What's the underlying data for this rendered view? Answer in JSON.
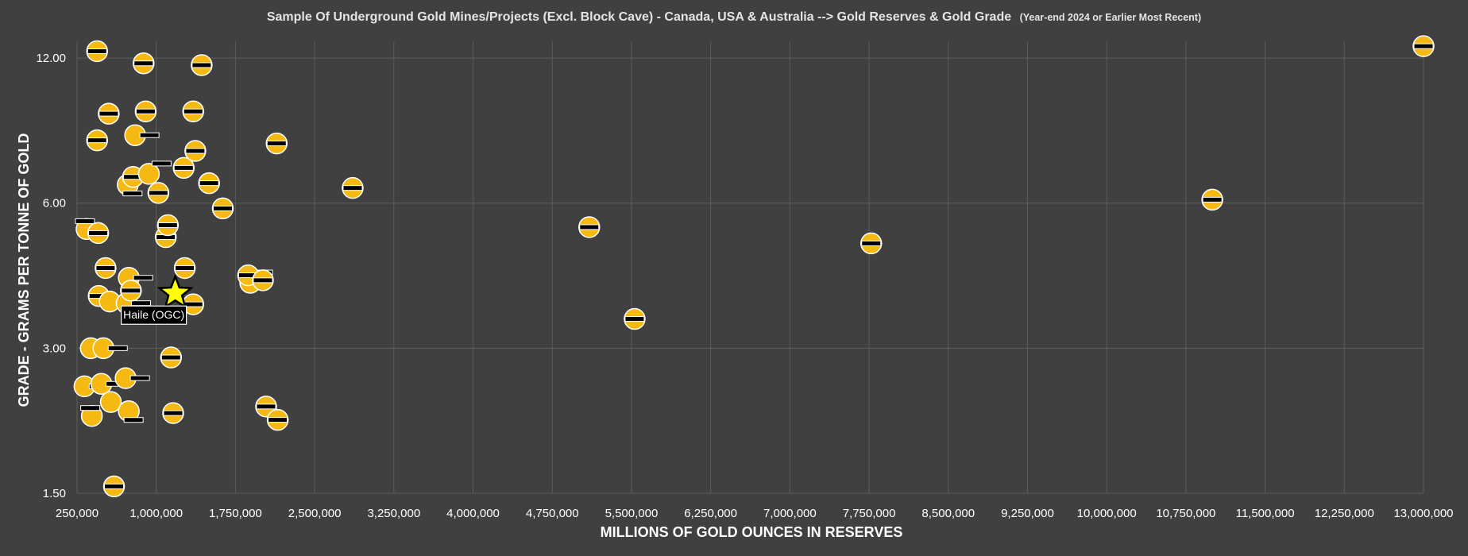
{
  "chart_data": {
    "type": "scatter",
    "title": "Sample Of Underground Gold Mines/Projects (Excl. Block Cave) - Canada, USA & Australia --> Gold Reserves & Gold Grade",
    "subtitle": "(Year-end 2024 or Earlier Most Recent)",
    "xlabel": "MILLIONS OF GOLD OUNCES IN RESERVES",
    "ylabel": "GRADE - GRAMS PER TONNE OF GOLD",
    "xlim": [
      250000,
      13000000
    ],
    "ylim": [
      1.5,
      13
    ],
    "y_scale": "log",
    "x_ticks": [
      "250,000",
      "1,000,000",
      "1,750,000",
      "2,500,000",
      "3,250,000",
      "4,000,000",
      "4,750,000",
      "5,500,000",
      "6,250,000",
      "7,000,000",
      "7,750,000",
      "8,500,000",
      "9,250,000",
      "10,000,000",
      "10,750,000",
      "11,500,000",
      "12,250,000",
      "13,000,000"
    ],
    "x_tick_values": [
      250000,
      1000000,
      1750000,
      2500000,
      3250000,
      4000000,
      4750000,
      5500000,
      6250000,
      7000000,
      7750000,
      8500000,
      9250000,
      10000000,
      10750000,
      11500000,
      12250000,
      13000000
    ],
    "y_ticks": [
      "1.50",
      "3.00",
      "6.00",
      "12.00"
    ],
    "y_tick_values": [
      1.5,
      3.0,
      6.0,
      12.0
    ],
    "grid": true,
    "colors": {
      "background": "#404040",
      "bubble": "#f6b912",
      "highlight_star": "#ffff00",
      "label_box": "#000000",
      "gridline": "#5c5c5c"
    },
    "points": [
      {
        "x": 320000,
        "y": 2.5,
        "label_side": "right"
      },
      {
        "x": 340000,
        "y": 5.3,
        "label_side": "left"
      },
      {
        "x": 380000,
        "y": 3.0,
        "label_side": "none"
      },
      {
        "x": 390000,
        "y": 2.17,
        "label_side": "left"
      },
      {
        "x": 440000,
        "y": 8.1,
        "label_side": "on"
      },
      {
        "x": 440000,
        "y": 12.4,
        "label_side": "on"
      },
      {
        "x": 450000,
        "y": 5.2,
        "label_side": "on"
      },
      {
        "x": 455000,
        "y": 3.85,
        "label_side": "on"
      },
      {
        "x": 480000,
        "y": 2.53,
        "label_side": "right"
      },
      {
        "x": 500000,
        "y": 3.0,
        "label_side": "right"
      },
      {
        "x": 520000,
        "y": 4.4,
        "label_side": "on"
      },
      {
        "x": 550000,
        "y": 9.2,
        "label_side": "on"
      },
      {
        "x": 560000,
        "y": 3.75,
        "label_side": "none"
      },
      {
        "x": 570000,
        "y": 2.32,
        "label_side": "none"
      },
      {
        "x": 600000,
        "y": 1.55,
        "label_side": "on"
      },
      {
        "x": 710000,
        "y": 2.6,
        "label_side": "right"
      },
      {
        "x": 720000,
        "y": 3.72,
        "label_side": "right"
      },
      {
        "x": 730000,
        "y": 6.55,
        "label_side": "below"
      },
      {
        "x": 740000,
        "y": 4.2,
        "label_side": "right"
      },
      {
        "x": 740000,
        "y": 2.22,
        "label_side": "below"
      },
      {
        "x": 760000,
        "y": 3.95,
        "label_side": "on"
      },
      {
        "x": 780000,
        "y": 6.8,
        "label_side": "on"
      },
      {
        "x": 800000,
        "y": 8.3,
        "label_side": "right"
      },
      {
        "x": 880000,
        "y": 11.7,
        "label_side": "on"
      },
      {
        "x": 900000,
        "y": 9.3,
        "label_side": "on"
      },
      {
        "x": 930000,
        "y": 6.9,
        "label_side": "above"
      },
      {
        "x": 1020000,
        "y": 6.3,
        "label_side": "on"
      },
      {
        "x": 1090000,
        "y": 5.1,
        "label_side": "on"
      },
      {
        "x": 1110000,
        "y": 5.4,
        "label_side": "on"
      },
      {
        "x": 1140000,
        "y": 2.87,
        "label_side": "on"
      },
      {
        "x": 1160000,
        "y": 2.2,
        "label_side": "on"
      },
      {
        "x": 1260000,
        "y": 7.1,
        "label_side": "on"
      },
      {
        "x": 1270000,
        "y": 4.4,
        "label_side": "on"
      },
      {
        "x": 1350000,
        "y": 9.3,
        "label_side": "on"
      },
      {
        "x": 1370000,
        "y": 7.7,
        "label_side": "on"
      },
      {
        "x": 1430000,
        "y": 11.6,
        "label_side": "on"
      },
      {
        "x": 1350000,
        "y": 3.7,
        "label_side": "on"
      },
      {
        "x": 1500000,
        "y": 6.6,
        "label_side": "on"
      },
      {
        "x": 1630000,
        "y": 5.85,
        "label_side": "on"
      },
      {
        "x": 1890000,
        "y": 4.1,
        "label_side": "above"
      },
      {
        "x": 1870000,
        "y": 4.25,
        "label_side": "on"
      },
      {
        "x": 2010000,
        "y": 4.15,
        "label_side": "on"
      },
      {
        "x": 2040000,
        "y": 2.27,
        "label_side": "on"
      },
      {
        "x": 2140000,
        "y": 7.98,
        "label_side": "on"
      },
      {
        "x": 2150000,
        "y": 2.13,
        "label_side": "on"
      },
      {
        "x": 2860000,
        "y": 6.45,
        "label_side": "on"
      },
      {
        "x": 5100000,
        "y": 5.35,
        "label_side": "on"
      },
      {
        "x": 5530000,
        "y": 3.45,
        "label_side": "on"
      },
      {
        "x": 7770000,
        "y": 4.95,
        "label_side": "on"
      },
      {
        "x": 11000000,
        "y": 6.1,
        "label_side": "on"
      },
      {
        "x": 13000000,
        "y": 12.7,
        "label_side": "on"
      }
    ],
    "highlight": {
      "label": "Haile (OGC)",
      "x": 1180000,
      "y": 3.9,
      "marker": "star"
    }
  }
}
